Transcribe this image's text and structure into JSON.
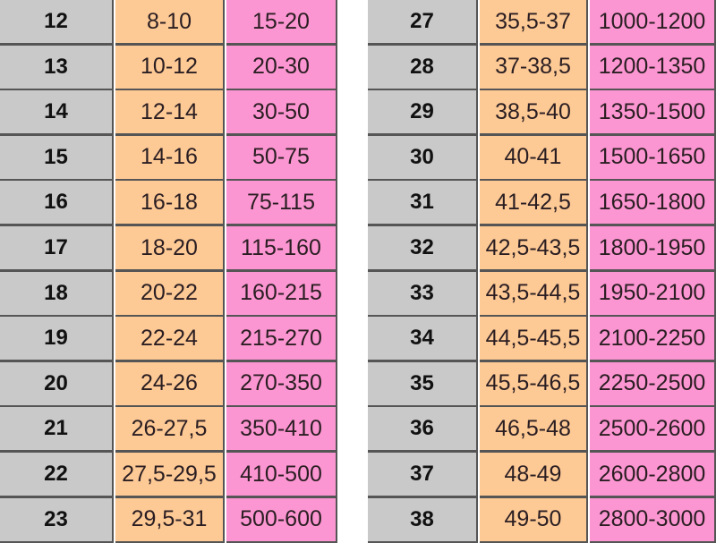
{
  "colors": {
    "number_cell": "#c9c9c9",
    "orange_cell": "#fdc995",
    "pink_cell": "#fc96d2"
  },
  "left_rows": [
    {
      "n": "12",
      "a": "8-10",
      "b": "15-20"
    },
    {
      "n": "13",
      "a": "10-12",
      "b": "20-30"
    },
    {
      "n": "14",
      "a": "12-14",
      "b": "30-50"
    },
    {
      "n": "15",
      "a": "14-16",
      "b": "50-75"
    },
    {
      "n": "16",
      "a": "16-18",
      "b": "75-115"
    },
    {
      "n": "17",
      "a": "18-20",
      "b": "115-160"
    },
    {
      "n": "18",
      "a": "20-22",
      "b": "160-215"
    },
    {
      "n": "19",
      "a": "22-24",
      "b": "215-270"
    },
    {
      "n": "20",
      "a": "24-26",
      "b": "270-350"
    },
    {
      "n": "21",
      "a": "26-27,5",
      "b": "350-410"
    },
    {
      "n": "22",
      "a": "27,5-29,5",
      "b": "410-500"
    },
    {
      "n": "23",
      "a": "29,5-31",
      "b": "500-600"
    }
  ],
  "right_rows": [
    {
      "n": "27",
      "a": "35,5-37",
      "b": "1000-1200"
    },
    {
      "n": "28",
      "a": "37-38,5",
      "b": "1200-1350"
    },
    {
      "n": "29",
      "a": "38,5-40",
      "b": "1350-1500"
    },
    {
      "n": "30",
      "a": "40-41",
      "b": "1500-1650"
    },
    {
      "n": "31",
      "a": "41-42,5",
      "b": "1650-1800"
    },
    {
      "n": "32",
      "a": "42,5-43,5",
      "b": "1800-1950"
    },
    {
      "n": "33",
      "a": "43,5-44,5",
      "b": "1950-2100"
    },
    {
      "n": "34",
      "a": "44,5-45,5",
      "b": "2100-2250"
    },
    {
      "n": "35",
      "a": "45,5-46,5",
      "b": "2250-2500"
    },
    {
      "n": "36",
      "a": "46,5-48",
      "b": "2500-2600"
    },
    {
      "n": "37",
      "a": "48-49",
      "b": "2600-2800"
    },
    {
      "n": "38",
      "a": "49-50",
      "b": "2800-3000"
    }
  ]
}
